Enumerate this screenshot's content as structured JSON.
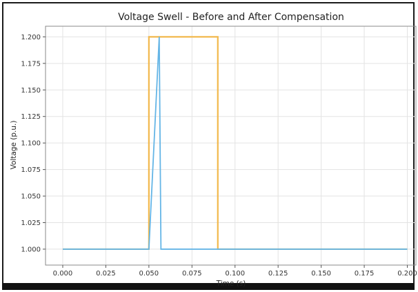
{
  "chart_data": {
    "type": "line",
    "title": "Voltage Swell - Before and After Compensation",
    "xlabel": "Time (s)",
    "ylabel": "Voltage (p.u.)",
    "xlim": [
      -0.01,
      0.205
    ],
    "ylim": [
      0.985,
      1.21
    ],
    "xticks": [
      0.0,
      0.025,
      0.05,
      0.075,
      0.1,
      0.125,
      0.15,
      0.175,
      0.2
    ],
    "xtick_labels": [
      "0.000",
      "0.025",
      "0.050",
      "0.075",
      "0.100",
      "0.125",
      "0.150",
      "0.175",
      "0.200"
    ],
    "yticks": [
      1.0,
      1.025,
      1.05,
      1.075,
      1.1,
      1.125,
      1.15,
      1.175,
      1.2
    ],
    "ytick_labels": [
      "1.000",
      "1.025",
      "1.050",
      "1.075",
      "1.100",
      "1.125",
      "1.150",
      "1.175",
      "1.200"
    ],
    "grid": true,
    "legend": "none",
    "series": [
      {
        "color": "#f2b84b",
        "x": [
          0.0,
          0.05,
          0.05,
          0.09,
          0.09,
          0.2
        ],
        "y": [
          1.0,
          1.0,
          1.2,
          1.2,
          1.0,
          1.0
        ]
      },
      {
        "color": "#64b5e6",
        "x": [
          0.0,
          0.05,
          0.056,
          0.057,
          0.2
        ],
        "y": [
          1.0,
          1.0,
          1.2,
          1.0,
          1.0
        ]
      }
    ]
  }
}
